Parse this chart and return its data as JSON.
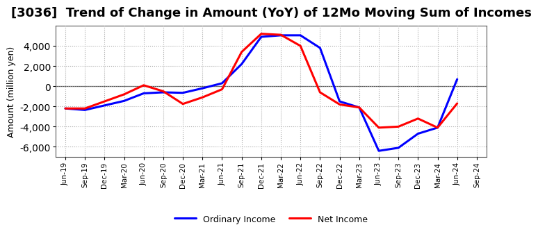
{
  "title": "[3036]  Trend of Change in Amount (YoY) of 12Mo Moving Sum of Incomes",
  "ylabel": "Amount (million yen)",
  "x_labels": [
    "Jun-19",
    "Sep-19",
    "Dec-19",
    "Mar-20",
    "Jun-20",
    "Sep-20",
    "Dec-20",
    "Mar-21",
    "Jun-21",
    "Sep-21",
    "Dec-21",
    "Mar-22",
    "Jun-22",
    "Sep-22",
    "Dec-22",
    "Mar-23",
    "Jun-23",
    "Sep-23",
    "Dec-23",
    "Mar-24",
    "Jun-24",
    "Sep-24"
  ],
  "ordinary_income": [
    -2200,
    -2350,
    -1900,
    -1450,
    -700,
    -600,
    -650,
    -200,
    300,
    2200,
    4900,
    5050,
    5050,
    3800,
    -1500,
    -2100,
    -6400,
    -6100,
    -4700,
    -4100,
    700,
    null
  ],
  "net_income": [
    -2200,
    -2200,
    -1500,
    -800,
    100,
    -500,
    -1750,
    -1100,
    -300,
    3400,
    5200,
    5100,
    4000,
    -600,
    -1800,
    -2100,
    -4100,
    -4000,
    -3200,
    -4100,
    -1700,
    null
  ],
  "ordinary_color": "#0000FF",
  "net_color": "#FF0000",
  "background_color": "#FFFFFF",
  "plot_bg_color": "#FFFFFF",
  "grid_color": "#AAAAAA",
  "ylim": [
    -7000,
    6000
  ],
  "yticks": [
    -6000,
    -4000,
    -2000,
    0,
    2000,
    4000
  ],
  "line_width": 2.2,
  "title_fontsize": 13,
  "legend_entries": [
    "Ordinary Income",
    "Net Income"
  ]
}
